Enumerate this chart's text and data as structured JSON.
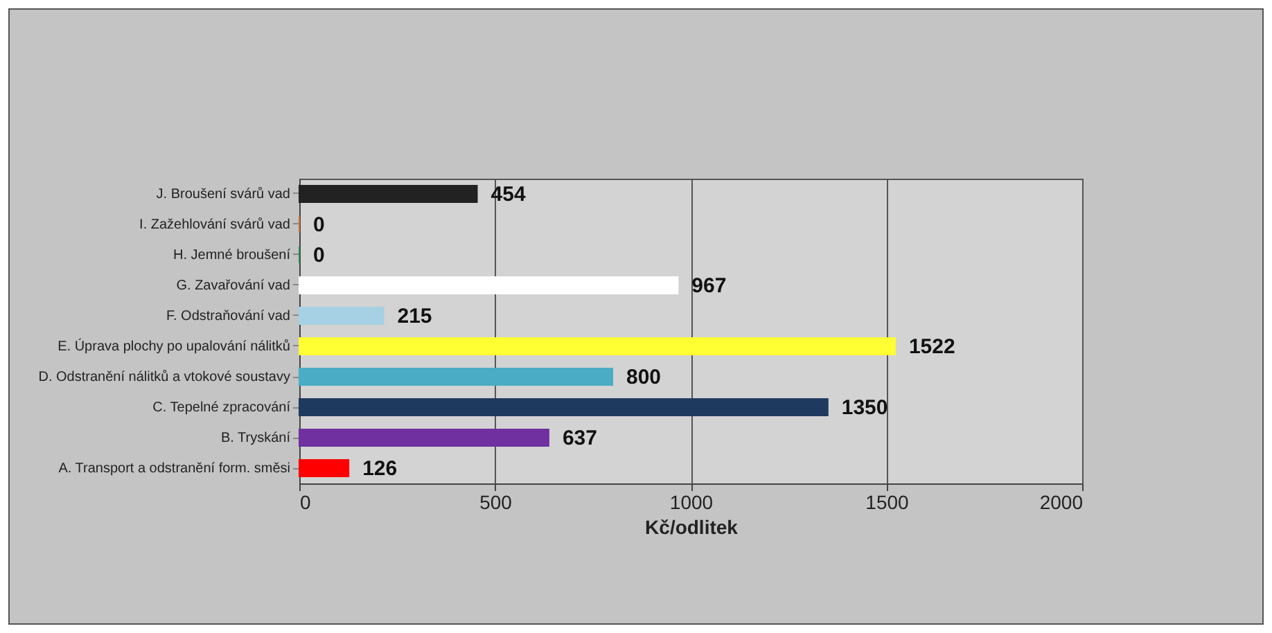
{
  "chart_data": {
    "type": "bar",
    "orientation": "horizontal",
    "xlabel": "Kč/odlitek",
    "categories": [
      "J. Broušení svárů vad",
      "I. Zažehlování svárů vad",
      "H. Jemné broušení",
      "G. Zavařování vad",
      "F. Odstraňování vad",
      "E. Úprava plochy po upalování nálitků",
      "D. Odstranění nálitků a vtokové soustavy",
      "C. Tepelné zpracování",
      "B. Tryskání",
      "A. Transport a odstranění form. směsi"
    ],
    "values": [
      454,
      0,
      0,
      967,
      215,
      1522,
      800,
      1350,
      637,
      126
    ],
    "colors": [
      "#222222",
      "#c87533",
      "#2e8b57",
      "#ffffff",
      "#a6d0e4",
      "#ffff33",
      "#4bacc6",
      "#1f3a5f",
      "#7030a0",
      "#ff0000"
    ],
    "xlim": [
      0,
      2000
    ],
    "xticks": [
      0,
      500,
      1000,
      1500,
      2000
    ],
    "grid": "x",
    "data_labels": true
  }
}
